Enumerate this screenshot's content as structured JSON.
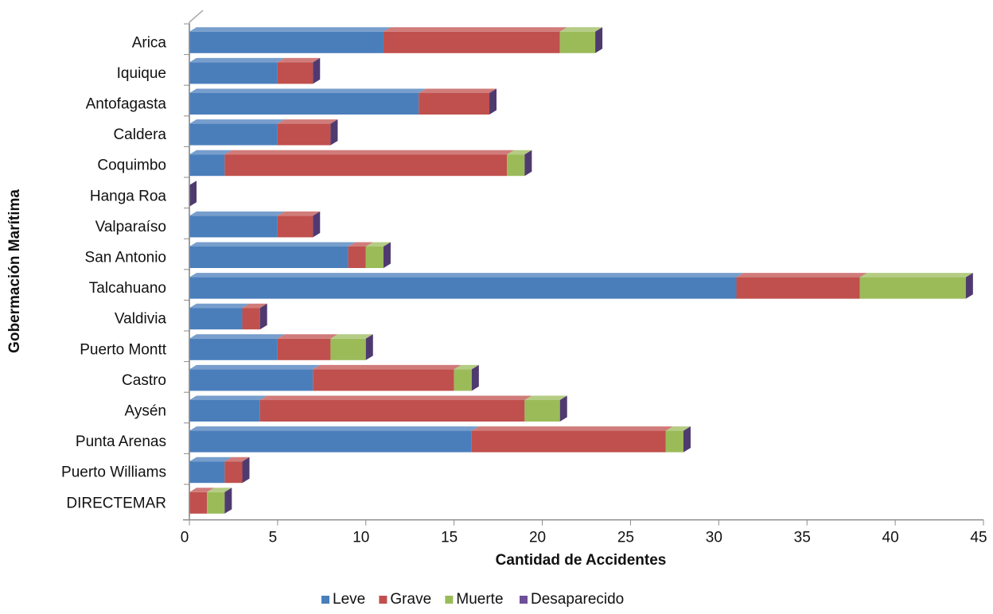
{
  "chart_data": {
    "type": "bar",
    "orientation": "horizontal",
    "stacked": true,
    "style": "3d",
    "xlabel": "Cantidad de Accidentes",
    "ylabel": "Gobermación Marítima",
    "xlim": [
      0,
      45
    ],
    "xticks": [
      0,
      5,
      10,
      15,
      20,
      25,
      30,
      35,
      40,
      45
    ],
    "grid": false,
    "legend_position": "bottom",
    "categories": [
      "Arica",
      "Iquique",
      "Antofagasta",
      "Caldera",
      "Coquimbo",
      "Hanga Roa",
      "Valparaíso",
      "San Antonio",
      "Talcahuano",
      "Valdivia",
      "Puerto Montt",
      "Castro",
      "Aysén",
      "Punta Arenas",
      "Puerto Williams",
      "DIRECTEMAR"
    ],
    "series": [
      {
        "name": "Leve",
        "color": "#4a7ebb",
        "values": [
          11,
          5,
          13,
          5,
          2,
          0,
          5,
          9,
          31,
          3,
          5,
          7,
          4,
          16,
          2,
          0
        ]
      },
      {
        "name": "Grave",
        "color": "#c0504d",
        "values": [
          10,
          2,
          4,
          3,
          16,
          0,
          2,
          1,
          7,
          1,
          3,
          8,
          15,
          11,
          1,
          1
        ]
      },
      {
        "name": "Muerte",
        "color": "#9bbb59",
        "values": [
          2,
          0,
          0,
          0,
          1,
          0,
          0,
          1,
          6,
          0,
          2,
          1,
          2,
          1,
          0,
          1
        ]
      },
      {
        "name": "Desaparecido",
        "color": "#6e4f98",
        "values": [
          0,
          0,
          0,
          0,
          0,
          0,
          0,
          0,
          0,
          0,
          0,
          0,
          0,
          0,
          0,
          0
        ]
      }
    ]
  }
}
